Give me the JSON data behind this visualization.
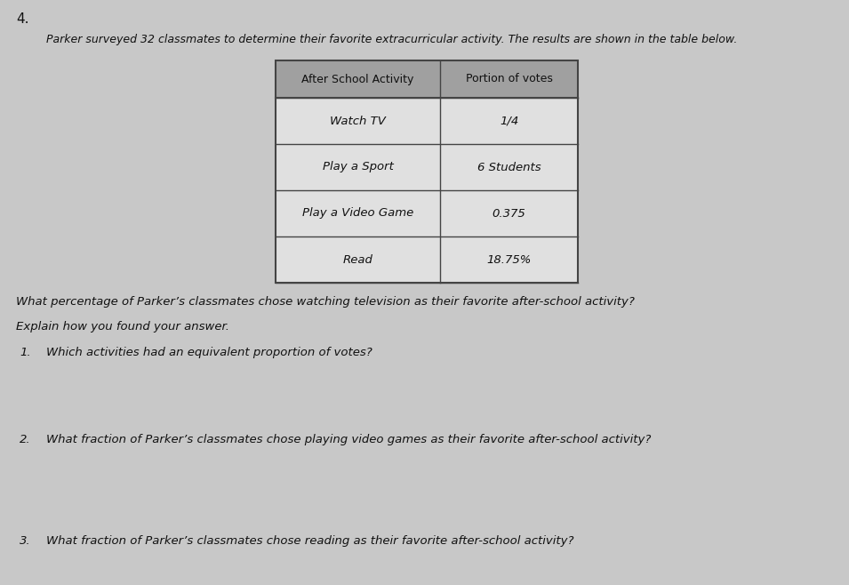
{
  "question_number": "4.",
  "intro_text": "Parker surveyed 32 classmates to determine their favorite extracurricular activity. The results are shown in the table below.",
  "table_header": [
    "After School Activity",
    "Portion of votes"
  ],
  "table_rows": [
    [
      "Watch TV",
      "1/4"
    ],
    [
      "Play a Sport",
      "6 Students"
    ],
    [
      "Play a Video Game",
      "0.375"
    ],
    [
      "Read",
      "18.75%"
    ]
  ],
  "question_main": "What percentage of Parker’s classmates chose watching television as their favorite after-school activity?",
  "question_explain": "Explain how you found your answer.",
  "sub_questions": [
    {
      "number": "1.",
      "text": "Which activities had an equivalent proportion of votes?"
    },
    {
      "number": "2.",
      "text": "What fraction of Parker’s classmates chose playing video games as their favorite after-school activity?"
    },
    {
      "number": "3.",
      "text": "What fraction of Parker’s classmates chose reading as their favorite after-school activity?"
    }
  ],
  "bg_color": "#c8c8c8",
  "table_header_bg": "#a0a0a0",
  "table_header_text_color": "#111111",
  "table_body_bg": "#e0e0e0",
  "table_border_color": "#444444",
  "text_color": "#111111"
}
